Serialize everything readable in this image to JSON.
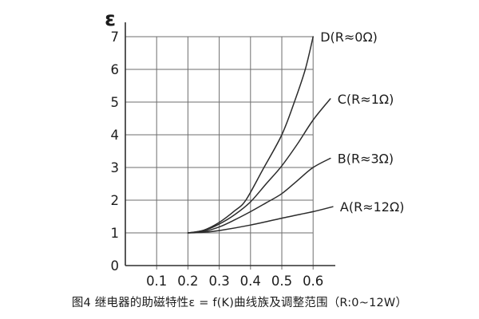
{
  "figure": {
    "caption": "图4 继电器的助磁特性ε = f(K)曲线族及调整范围（R:0~12W）"
  },
  "chart_data": {
    "type": "line",
    "title": "",
    "xlabel": "",
    "ylabel": "ε",
    "x_tick_labels": [
      "0.1",
      "0.2",
      "0.3",
      "0.4",
      "0.5",
      "0.6"
    ],
    "y_tick_labels": [
      "0",
      "1",
      "2",
      "3",
      "4",
      "5",
      "6",
      "7"
    ],
    "xlim": [
      0,
      0.67
    ],
    "ylim": [
      0,
      7.3
    ],
    "grid": true,
    "legend_position": "right-of-curve-ends",
    "colors": {
      "axis": "#2f2f2f",
      "grid": "#6e6e6e",
      "curve": "#2b2b2b",
      "text": "#1c1c1c"
    },
    "series": [
      {
        "name": "D",
        "label": "D(R≈0Ω)",
        "points": [
          [
            0.2,
            1.0
          ],
          [
            0.25,
            1.08
          ],
          [
            0.3,
            1.32
          ],
          [
            0.35,
            1.68
          ],
          [
            0.385,
            2.0
          ],
          [
            0.44,
            2.95
          ],
          [
            0.5,
            4.0
          ],
          [
            0.54,
            5.0
          ],
          [
            0.575,
            6.0
          ],
          [
            0.6,
            7.0
          ]
        ]
      },
      {
        "name": "C",
        "label": "C(R≈1Ω)",
        "points": [
          [
            0.2,
            1.0
          ],
          [
            0.25,
            1.07
          ],
          [
            0.3,
            1.27
          ],
          [
            0.35,
            1.56
          ],
          [
            0.4,
            1.95
          ],
          [
            0.45,
            2.5
          ],
          [
            0.5,
            3.05
          ],
          [
            0.55,
            3.72
          ],
          [
            0.6,
            4.45
          ],
          [
            0.655,
            5.1
          ]
        ]
      },
      {
        "name": "B",
        "label": "B(R≈3Ω)",
        "points": [
          [
            0.2,
            1.0
          ],
          [
            0.25,
            1.04
          ],
          [
            0.3,
            1.18
          ],
          [
            0.35,
            1.4
          ],
          [
            0.4,
            1.65
          ],
          [
            0.45,
            1.92
          ],
          [
            0.5,
            2.2
          ],
          [
            0.55,
            2.6
          ],
          [
            0.6,
            3.0
          ],
          [
            0.655,
            3.28
          ]
        ]
      },
      {
        "name": "A",
        "label": "A(R≈12Ω)",
        "points": [
          [
            0.2,
            1.0
          ],
          [
            0.25,
            1.02
          ],
          [
            0.3,
            1.07
          ],
          [
            0.4,
            1.24
          ],
          [
            0.5,
            1.45
          ],
          [
            0.6,
            1.65
          ],
          [
            0.663,
            1.8
          ]
        ]
      }
    ]
  }
}
